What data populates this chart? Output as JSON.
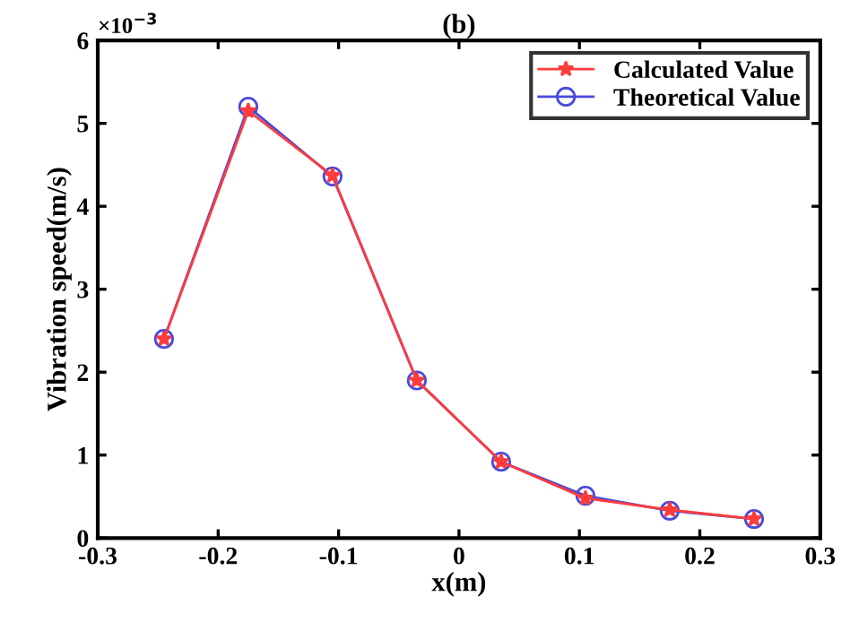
{
  "chart_data": {
    "type": "line",
    "title": "(b)",
    "xlabel": "x(m)",
    "ylabel": "Vibration speed(m/s)",
    "annotations": [
      "×10$^{−3}$"
    ],
    "x": [
      -0.245,
      -0.175,
      -0.105,
      -0.035,
      0.035,
      0.105,
      0.175,
      0.245
    ],
    "series": [
      {
        "name": "Calculated Value",
        "color": "#ff3b3b",
        "marker": "star",
        "values": [
          2.4,
          5.15,
          4.37,
          1.9,
          0.92,
          0.48,
          0.34,
          0.23
        ]
      },
      {
        "name": "Theoretical Value",
        "color": "#4a4adc",
        "marker": "circle",
        "values": [
          2.4,
          5.2,
          4.36,
          1.9,
          0.92,
          0.51,
          0.33,
          0.23
        ]
      }
    ],
    "xlim": [
      -0.3,
      0.3
    ],
    "xticks": [
      -0.3,
      -0.2,
      -0.1,
      0,
      0.1,
      0.2,
      0.3
    ],
    "ylim": [
      0,
      6
    ],
    "yticks": [
      0,
      1,
      2,
      3,
      4,
      5,
      6
    ],
    "grid": false,
    "legend": "top right",
    "line_style": "solid"
  }
}
